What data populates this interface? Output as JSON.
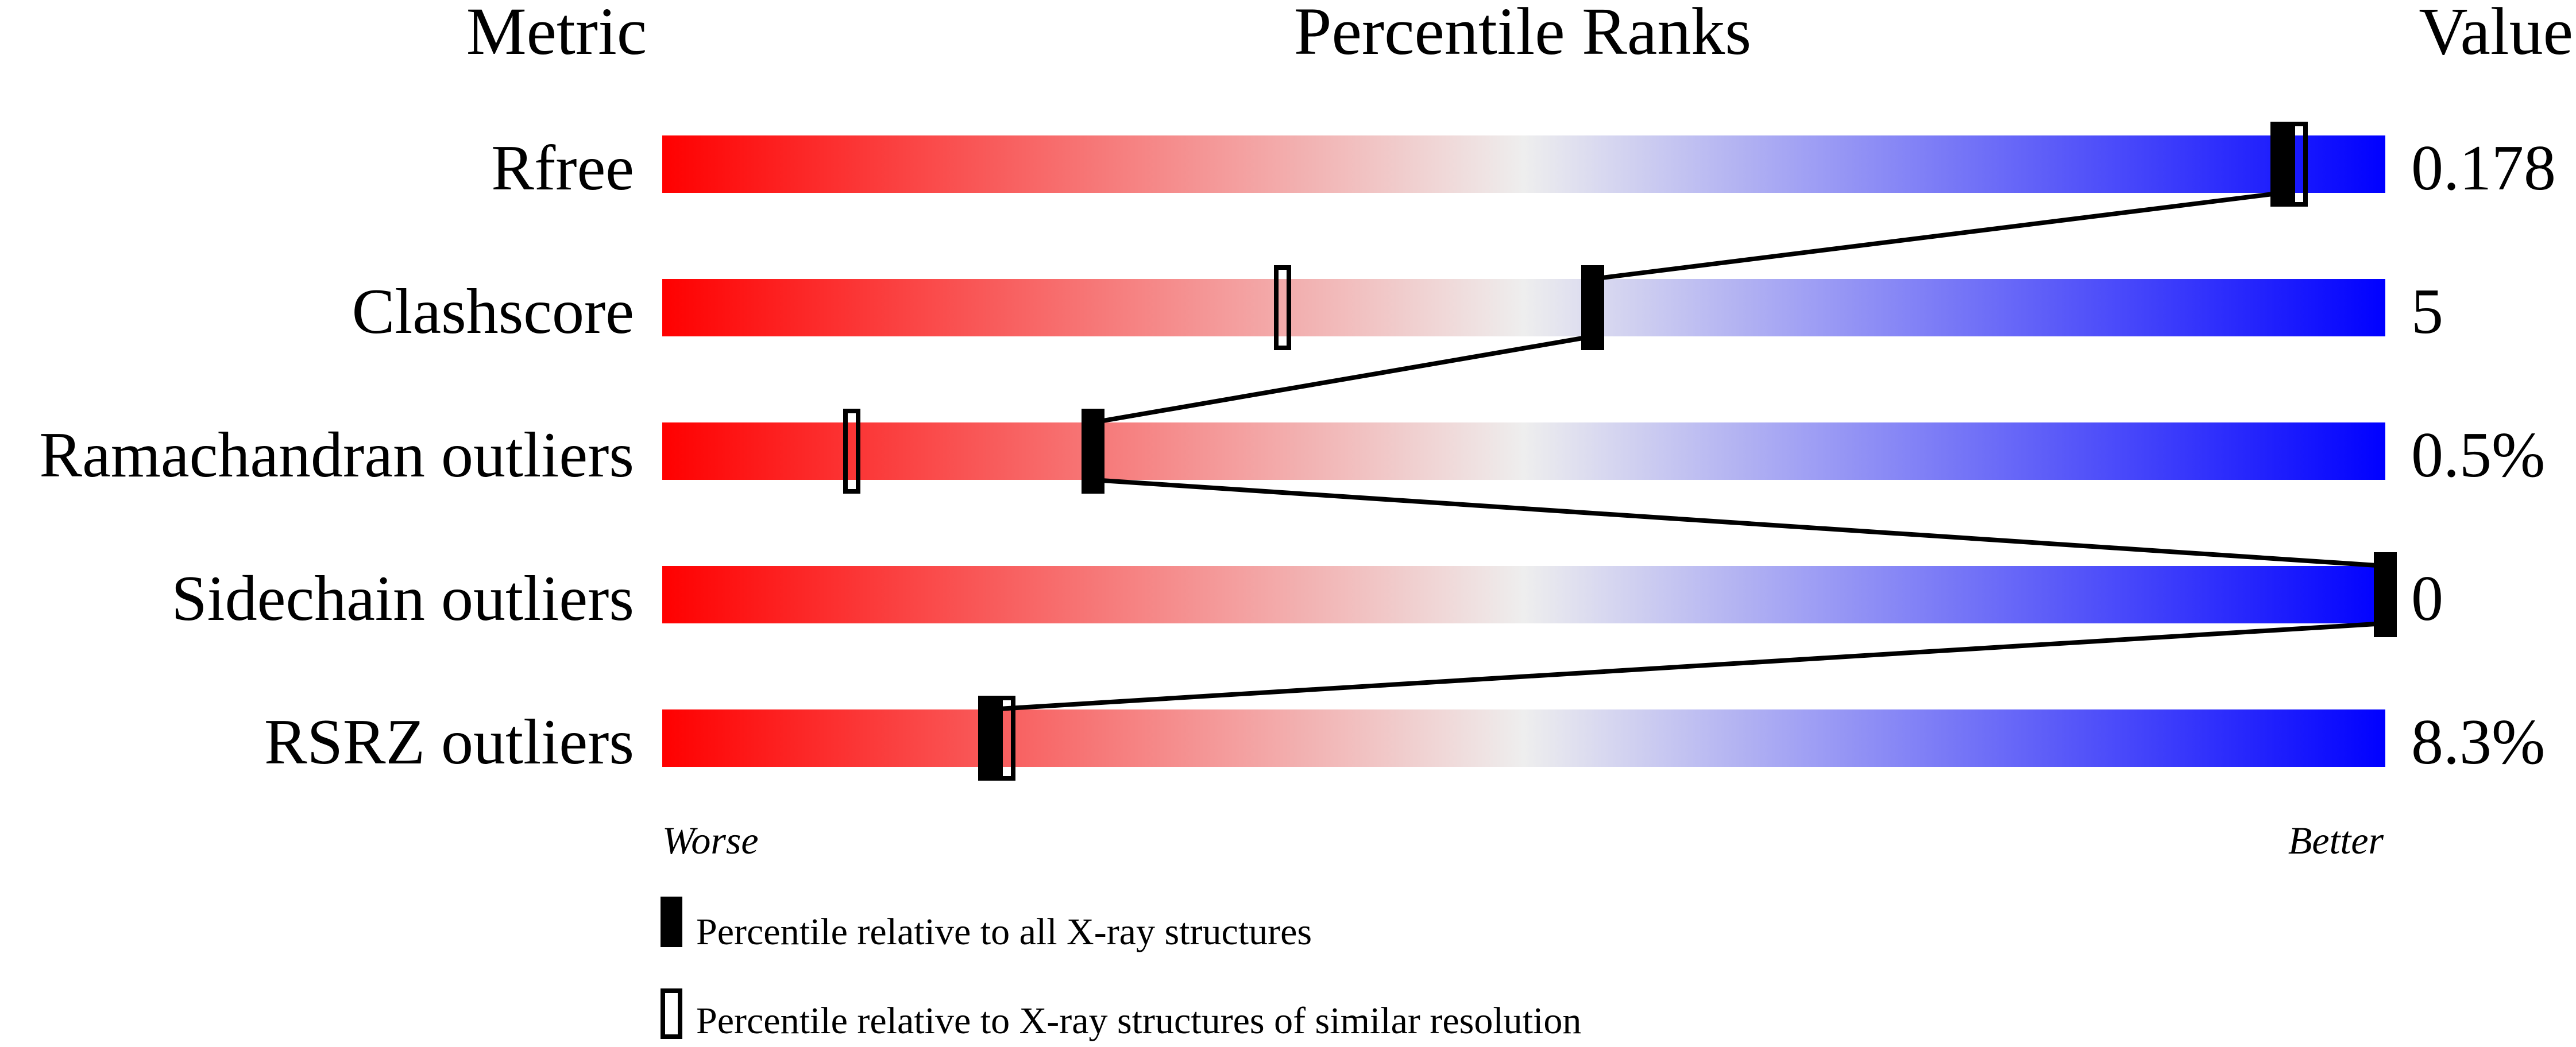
{
  "chart_data": {
    "type": "bar",
    "title": "",
    "headers": {
      "metric": "Metric",
      "ranks": "Percentile Ranks",
      "value": "Value"
    },
    "xlim": [
      0,
      100
    ],
    "scale_labels": {
      "left": "Worse",
      "right": "Better"
    },
    "colors": {
      "worse": "#ff0000",
      "middle": "#eeeeee",
      "better": "#0000ff",
      "marker": "#000000"
    },
    "rows": [
      {
        "metric": "Rfree",
        "value": "0.178",
        "percentile_all": 94,
        "percentile_similar": 95
      },
      {
        "metric": "Clashscore",
        "value": "5",
        "percentile_all": 54,
        "percentile_similar": 36
      },
      {
        "metric": "Ramachandran outliers",
        "value": "0.5%",
        "percentile_all": 25,
        "percentile_similar": 11
      },
      {
        "metric": "Sidechain outliers",
        "value": "0",
        "percentile_all": 100,
        "percentile_similar": null
      },
      {
        "metric": "RSRZ outliers",
        "value": "8.3%",
        "percentile_all": 19,
        "percentile_similar": 20
      }
    ],
    "legend": [
      {
        "marker": "filled",
        "label": "Percentile relative to all X-ray structures"
      },
      {
        "marker": "open",
        "label": "Percentile relative to X-ray structures of similar resolution"
      }
    ]
  }
}
